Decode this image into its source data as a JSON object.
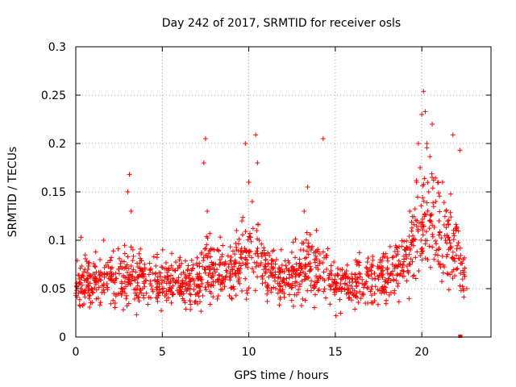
{
  "chart_data": {
    "type": "scatter",
    "title": "Day 242 of 2017, SRMTID for receiver osls",
    "xlabel": "GPS time / hours",
    "ylabel": "SRMTID / TECUs",
    "xlim": [
      0,
      24
    ],
    "ylim": [
      0,
      0.3
    ],
    "xticks": [
      0,
      5,
      10,
      15,
      20
    ],
    "xtick_labels": [
      "0",
      "5",
      "10",
      "15",
      "20"
    ],
    "yticks": [
      0,
      0.05,
      0.1,
      0.15,
      0.2,
      0.25,
      0.3
    ],
    "ytick_labels": [
      "0",
      "0.05",
      "0.1",
      "0.15",
      "0.2",
      "0.25",
      "0.3"
    ],
    "grid": true,
    "marker": "plus",
    "series": [
      {
        "name": "SRMTID",
        "color": "#ff0000",
        "trend": {
          "x": [
            0,
            1,
            2,
            3,
            4,
            5,
            6,
            7,
            7.5,
            8,
            9,
            10,
            10.5,
            11,
            12,
            13,
            13.5,
            14,
            15,
            16,
            17,
            18,
            19,
            19.5,
            20,
            20.5,
            21,
            21.5,
            22,
            22.5
          ],
          "y": [
            0.055,
            0.055,
            0.058,
            0.062,
            0.06,
            0.058,
            0.055,
            0.055,
            0.07,
            0.065,
            0.07,
            0.085,
            0.09,
            0.065,
            0.06,
            0.07,
            0.08,
            0.07,
            0.055,
            0.055,
            0.06,
            0.065,
            0.075,
            0.09,
            0.12,
            0.13,
            0.11,
            0.1,
            0.09,
            0.055
          ]
        },
        "x": [
          0.2,
          0.3,
          0.5,
          0.7,
          0.9,
          1.1,
          1.3,
          1.6,
          1.8,
          2.0,
          2.2,
          2.5,
          2.8,
          3.0,
          3.1,
          3.2,
          3.4,
          3.7,
          4.0,
          4.3,
          4.6,
          5.0,
          5.3,
          5.6,
          6.0,
          6.3,
          6.6,
          7.0,
          7.2,
          7.4,
          7.5,
          7.6,
          7.8,
          8.0,
          8.3,
          8.6,
          9.0,
          9.3,
          9.6,
          9.8,
          10.0,
          10.2,
          10.4,
          10.5,
          10.6,
          10.8,
          11.0,
          11.3,
          11.6,
          12.0,
          12.3,
          12.6,
          13.0,
          13.2,
          13.4,
          13.6,
          13.8,
          14.0,
          14.3,
          14.6,
          15.0,
          15.3,
          15.6,
          16.0,
          16.3,
          16.6,
          17.0,
          17.3,
          17.6,
          18.0,
          18.3,
          18.6,
          19.0,
          19.3,
          19.5,
          19.7,
          19.8,
          19.9,
          20.0,
          20.1,
          20.2,
          20.3,
          20.4,
          20.6,
          20.8,
          21.0,
          21.2,
          21.4,
          21.6,
          21.8,
          22.0,
          22.2,
          22.4,
          22.6
        ],
        "y": [
          0.06,
          0.103,
          0.045,
          0.07,
          0.05,
          0.065,
          0.04,
          0.1,
          0.055,
          0.06,
          0.045,
          0.07,
          0.05,
          0.15,
          0.168,
          0.13,
          0.06,
          0.05,
          0.07,
          0.055,
          0.065,
          0.05,
          0.06,
          0.07,
          0.045,
          0.065,
          0.05,
          0.045,
          0.06,
          0.18,
          0.205,
          0.13,
          0.09,
          0.07,
          0.06,
          0.075,
          0.07,
          0.09,
          0.12,
          0.2,
          0.16,
          0.14,
          0.209,
          0.18,
          0.1,
          0.06,
          0.07,
          0.05,
          0.08,
          0.06,
          0.055,
          0.07,
          0.09,
          0.13,
          0.155,
          0.09,
          0.08,
          0.07,
          0.205,
          0.06,
          0.05,
          0.055,
          0.065,
          0.05,
          0.06,
          0.045,
          0.07,
          0.06,
          0.08,
          0.07,
          0.075,
          0.065,
          0.09,
          0.13,
          0.1,
          0.16,
          0.2,
          0.175,
          0.23,
          0.254,
          0.233,
          0.2,
          0.15,
          0.22,
          0.14,
          0.12,
          0.16,
          0.13,
          0.1,
          0.209,
          0.07,
          0.193,
          0.08,
          0.05
        ]
      }
    ],
    "zero_markers": {
      "x": [
        22.2,
        22.25
      ],
      "y": [
        0,
        0
      ]
    }
  }
}
